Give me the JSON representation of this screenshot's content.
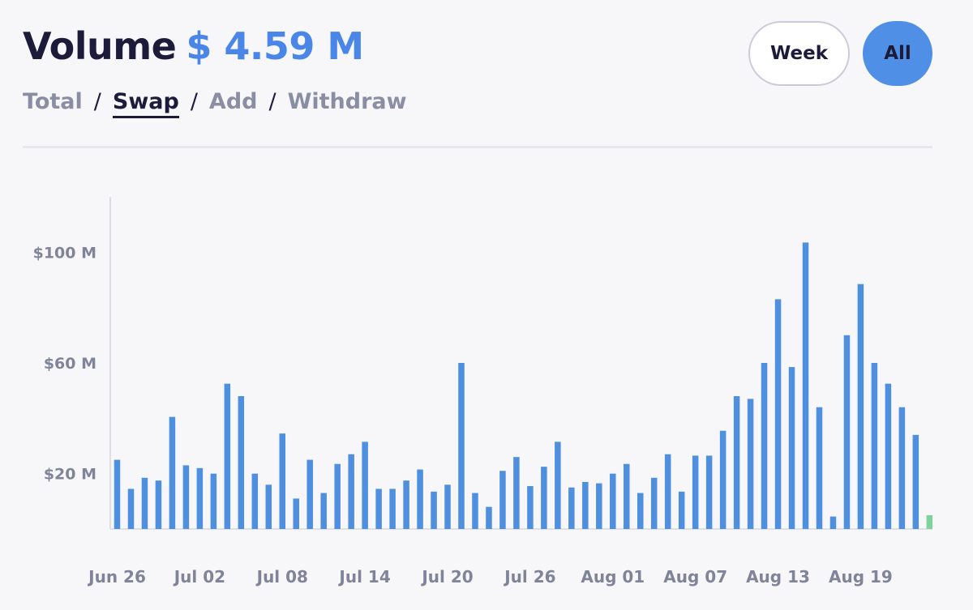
{
  "header": {
    "title": "Volume",
    "value": "$ 4.59 M"
  },
  "tabs": [
    {
      "label": "Total",
      "active": false
    },
    {
      "label": "Swap",
      "active": true
    },
    {
      "label": "Add",
      "active": false
    },
    {
      "label": "Withdraw",
      "active": false
    }
  ],
  "range_buttons": {
    "week_label": "Week",
    "all_label": "All",
    "selected": "All"
  },
  "colors": {
    "accent": "#4a86e8",
    "bar": "#4f8fe0",
    "bar_last": "#7fd29a",
    "button_active": "#4f8fe6"
  },
  "chart_data": {
    "type": "bar",
    "y_ticks": [
      "$20 M",
      "$60 M",
      "$100 M"
    ],
    "y_tick_values": [
      20,
      60,
      100
    ],
    "ylim": [
      0,
      120
    ],
    "x_tick_labels": [
      "Jun 26",
      "Jul 02",
      "Jul 08",
      "Jul 14",
      "Jul 20",
      "Jul 26",
      "Aug 01",
      "Aug 07",
      "Aug 13",
      "Aug 19"
    ],
    "x_tick_indices": [
      0,
      6,
      12,
      18,
      24,
      30,
      36,
      42,
      48,
      54
    ],
    "grid": false,
    "unit": "M",
    "values": [
      25,
      14.5,
      18.5,
      17.5,
      40.5,
      23,
      22,
      20,
      52.5,
      48,
      20,
      16,
      34.5,
      11,
      25,
      13,
      23.5,
      27,
      31.5,
      14.5,
      14.5,
      17.5,
      21.5,
      13.5,
      16,
      60,
      13,
      8,
      21,
      26,
      15.5,
      22.5,
      31.5,
      15,
      17,
      16.5,
      20,
      23.5,
      13,
      18.5,
      27,
      13.5,
      26.5,
      26.5,
      35.5,
      48,
      47,
      60,
      83,
      58.5,
      103.5,
      44,
      4.5,
      70,
      88.5,
      60,
      52.5,
      44,
      34,
      5
    ]
  }
}
